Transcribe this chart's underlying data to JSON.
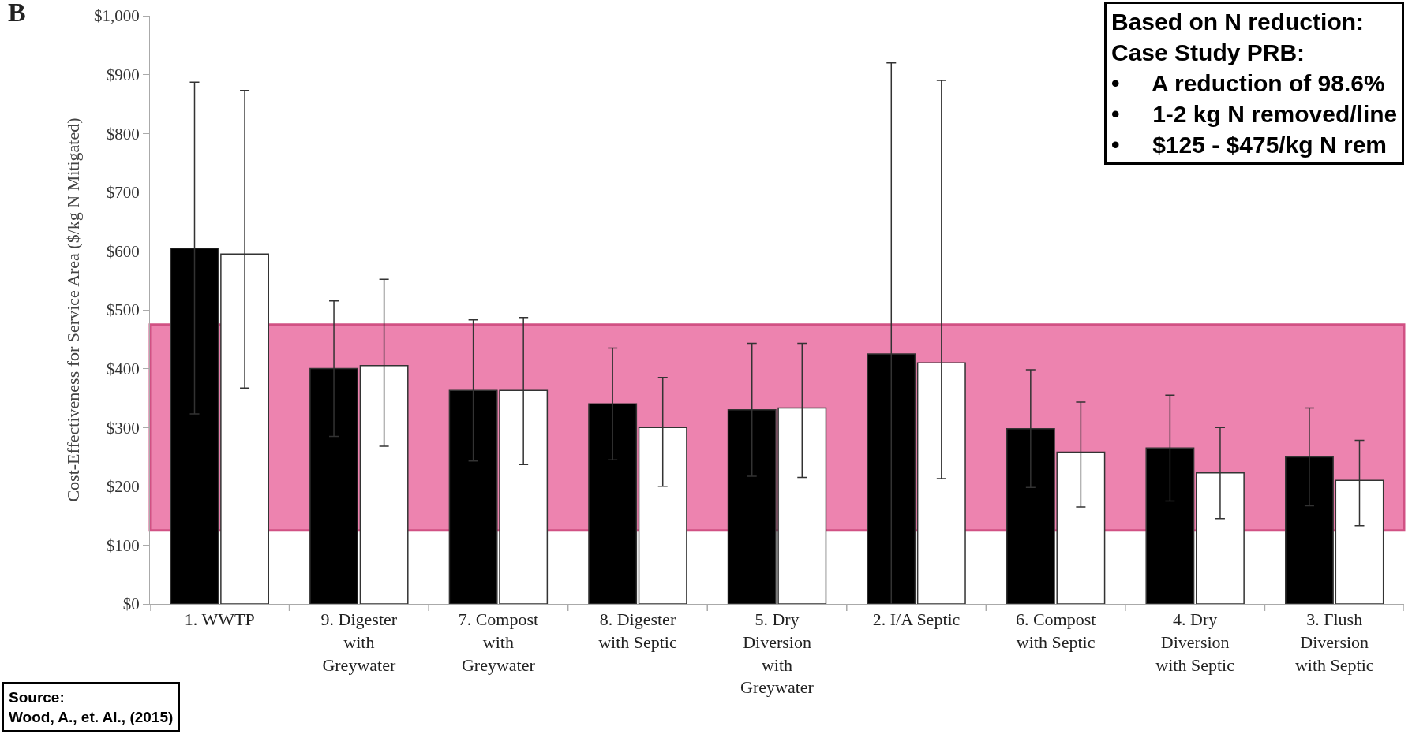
{
  "chart_data": {
    "type": "bar",
    "ylabel": "Cost-Effectiveness for Service Area ($/kg N Mitigated)",
    "categories": [
      "1. WWTP",
      "9. Digester with Greywater",
      "7. Compost with Greywater",
      "8. Digester with Septic",
      "5. Dry Diversion with Greywater",
      "2. I/A Septic",
      "6. Compost with Septic",
      "4. Dry Diversion with Septic",
      "3. Flush Diversion with Septic"
    ],
    "series": [
      {
        "color": "#000000",
        "values": [
          605,
          400,
          363,
          340,
          330,
          425,
          298,
          265,
          250
        ],
        "errors": [
          282,
          115,
          120,
          95,
          113,
          495,
          100,
          90,
          83
        ]
      },
      {
        "color": "#ffffff",
        "values": [
          595,
          405,
          363,
          300,
          333,
          410,
          258,
          223,
          210
        ],
        "errors": [
          [
            367,
            873
          ],
          [
            268,
            552
          ],
          [
            237,
            487
          ],
          [
            200,
            385
          ],
          [
            215,
            443
          ],
          [
            213,
            890
          ],
          [
            165,
            343
          ],
          [
            145,
            300
          ],
          [
            133,
            278
          ]
        ]
      }
    ],
    "ylim": [
      0,
      1000
    ],
    "yticks": [
      {
        "value": 0,
        "label": "$0"
      },
      {
        "value": 100,
        "label": "$100"
      },
      {
        "value": 200,
        "label": "$200"
      },
      {
        "value": 300,
        "label": "$300"
      },
      {
        "value": 400,
        "label": "$400"
      },
      {
        "value": 500,
        "label": "$500"
      },
      {
        "value": 600,
        "label": "$600"
      },
      {
        "value": 700,
        "label": "$700"
      },
      {
        "value": 800,
        "label": "$800"
      },
      {
        "value": 900,
        "label": "$900"
      },
      {
        "value": 1000,
        "label": "$1,000"
      }
    ],
    "bands": [
      {
        "axis": "y",
        "from": 125,
        "to": 475,
        "color": "#e75a95"
      }
    ],
    "annotations": [
      "B",
      "Based on N reduction:\nCase Study PRB:\n•     A reduction of 98.6%\n•     1-2 kg N removed/line\n•     $125 - $475/kg N rem",
      "Source:\nWood, A., et. Al., (2015)"
    ]
  }
}
